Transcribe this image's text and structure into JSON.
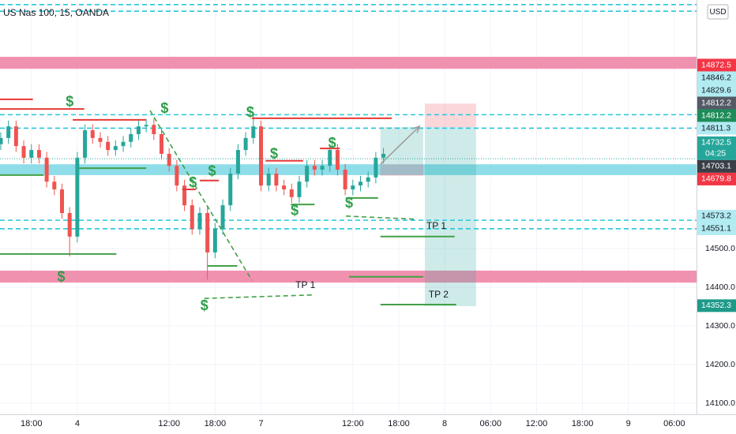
{
  "chart_data": {
    "type": "candlestick",
    "title": "US Nas 100, 15, OANDA",
    "currency": "USD",
    "countdown": "04:25",
    "up_color": "#26a69a",
    "down_color": "#ef5350",
    "grid": true,
    "xlim": [
      13.9,
      104.9
    ],
    "ylim": [
      14071.4,
      15142.9
    ],
    "xticks": [
      {
        "value": 18,
        "label": "18:00"
      },
      {
        "value": 24,
        "label": "4"
      },
      {
        "value": 36,
        "label": "12:00"
      },
      {
        "value": 42,
        "label": "18:00"
      },
      {
        "value": 48,
        "label": "7"
      },
      {
        "value": 60,
        "label": "12:00"
      },
      {
        "value": 66,
        "label": "18:00"
      },
      {
        "value": 72,
        "label": "8"
      },
      {
        "value": 78,
        "label": "06:00"
      },
      {
        "value": 84,
        "label": "12:00"
      },
      {
        "value": 90,
        "label": "18:00"
      },
      {
        "value": 96,
        "label": "9"
      },
      {
        "value": 102,
        "label": "06:00"
      }
    ],
    "yticks": [
      {
        "value": 14500,
        "label": "14500.0"
      },
      {
        "value": 14400,
        "label": "14400.0"
      },
      {
        "value": 14300,
        "label": "14300.0"
      },
      {
        "value": 14200,
        "label": "14200.0"
      },
      {
        "value": 14100,
        "label": "14100.0"
      }
    ],
    "candles": {
      "x": [
        14,
        15,
        16,
        17,
        18,
        19,
        20,
        21,
        22,
        23,
        24,
        25,
        26,
        27,
        28,
        29,
        30,
        31,
        32,
        33,
        34,
        35,
        36,
        37,
        38,
        39,
        40,
        41,
        42,
        43,
        44,
        45,
        46,
        47,
        48,
        49,
        50,
        51,
        52,
        53,
        54,
        55,
        56,
        57,
        58,
        59,
        60,
        61,
        62,
        63,
        64
      ],
      "open": [
        14770,
        14786,
        14816,
        14765,
        14735,
        14755,
        14735,
        14673,
        14653,
        14592,
        14531,
        14735,
        14806,
        14786,
        14776,
        14755,
        14765,
        14776,
        14796,
        14816,
        14820,
        14796,
        14745,
        14714,
        14663,
        14612,
        14551,
        14592,
        14490,
        14551,
        14612,
        14694,
        14755,
        14786,
        14816,
        14663,
        14694,
        14663,
        14653,
        14633,
        14673,
        14714,
        14704,
        14714,
        14755,
        14704,
        14653,
        14663,
        14673,
        14684,
        14735
      ],
      "high": [
        14801,
        14831,
        14831,
        14780,
        14770,
        14770,
        14750,
        14688,
        14668,
        14607,
        14750,
        14821,
        14821,
        14801,
        14791,
        14780,
        14791,
        14811,
        14831,
        14835,
        14835,
        14811,
        14760,
        14729,
        14678,
        14627,
        14607,
        14607,
        14566,
        14627,
        14709,
        14770,
        14801,
        14850,
        14831,
        14709,
        14709,
        14678,
        14668,
        14688,
        14729,
        14729,
        14729,
        14770,
        14770,
        14719,
        14678,
        14688,
        14699,
        14750,
        14760
      ],
      "low": [
        14755,
        14771,
        14750,
        14720,
        14720,
        14720,
        14658,
        14638,
        14577,
        14480,
        14516,
        14720,
        14771,
        14761,
        14740,
        14740,
        14750,
        14761,
        14781,
        14801,
        14781,
        14730,
        14699,
        14648,
        14597,
        14536,
        14536,
        14420,
        14475,
        14536,
        14597,
        14679,
        14740,
        14771,
        14648,
        14648,
        14648,
        14638,
        14618,
        14618,
        14658,
        14689,
        14689,
        14699,
        14689,
        14638,
        14638,
        14648,
        14658,
        14669,
        14720
      ],
      "close": [
        14786,
        14816,
        14765,
        14735,
        14755,
        14735,
        14673,
        14653,
        14592,
        14531,
        14735,
        14806,
        14786,
        14776,
        14755,
        14765,
        14776,
        14796,
        14816,
        14820,
        14796,
        14745,
        14714,
        14663,
        14612,
        14551,
        14592,
        14490,
        14551,
        14612,
        14694,
        14755,
        14786,
        14816,
        14663,
        14694,
        14663,
        14653,
        14633,
        14673,
        14714,
        14704,
        14714,
        14755,
        14704,
        14653,
        14663,
        14673,
        14684,
        14735,
        14745
      ]
    },
    "zones": [
      {
        "low": 14965,
        "high": 14996,
        "color": "#f191b0"
      },
      {
        "low": 14690,
        "high": 14718,
        "color": "#8fdde8"
      },
      {
        "low": 14412,
        "high": 14443,
        "color": "#f191b0"
      }
    ],
    "hlines": [
      {
        "price": 15131,
        "color": "#26c6da"
      },
      {
        "price": 15114,
        "color": "#26c6da"
      },
      {
        "price": 14846.2,
        "color": "#26c6da"
      },
      {
        "price": 14811.3,
        "color": "#26c6da"
      },
      {
        "price": 14573.2,
        "color": "#26c6da"
      },
      {
        "price": 14551.1,
        "color": "#26c6da"
      }
    ],
    "boxes": [
      {
        "from": 69.4,
        "to": 76.1,
        "low": 14814,
        "high": 14875,
        "color": "rgba(242,54,69,0.2)"
      },
      {
        "from": 69.4,
        "to": 76.1,
        "low": 14351,
        "high": 14814,
        "color": "rgba(38,166,154,0.22)"
      },
      {
        "from": 63.6,
        "to": 69.2,
        "low": 14718,
        "high": 14814,
        "color": "rgba(38,166,154,0.22)"
      },
      {
        "from": 63.6,
        "to": 69.2,
        "low": 14688,
        "high": 14718,
        "color": "rgba(242,54,69,0.2)"
      }
    ],
    "levels": [
      {
        "price": 14886,
        "from": 13.9,
        "to": 18.2,
        "color": "#e53935"
      },
      {
        "price": 14861,
        "from": 13.9,
        "to": 24.9,
        "color": "#e53935"
      },
      {
        "price": 14833,
        "from": 23.4,
        "to": 33,
        "color": "#e53935"
      },
      {
        "price": 14837,
        "from": 46.8,
        "to": 65.1,
        "color": "#e53935"
      },
      {
        "price": 14727,
        "from": 48.6,
        "to": 53.5,
        "color": "#e53935"
      },
      {
        "price": 14759,
        "from": 55.7,
        "to": 58.3,
        "color": "#e53935"
      },
      {
        "price": 14676,
        "from": 40,
        "to": 42.5,
        "color": "#e53935"
      },
      {
        "price": 14653,
        "from": 37.7,
        "to": 39.5,
        "color": "#e53935"
      },
      {
        "price": 14708,
        "from": 24.2,
        "to": 33,
        "color": "#43a047"
      },
      {
        "price": 14690,
        "from": 13.9,
        "to": 19.6,
        "color": "#43a047"
      },
      {
        "price": 14486,
        "from": 13.9,
        "to": 29.1,
        "color": "#43a047"
      },
      {
        "price": 14455,
        "from": 41,
        "to": 44.9,
        "color": "#43a047"
      },
      {
        "price": 14614,
        "from": 51.9,
        "to": 55,
        "color": "#43a047"
      },
      {
        "price": 14631,
        "from": 59.1,
        "to": 63.3,
        "color": "#43a047"
      },
      {
        "price": 14531,
        "from": 63.6,
        "to": 73.3,
        "color": "#43a047"
      },
      {
        "price": 14427,
        "from": 59.5,
        "to": 69.2,
        "color": "#43a047"
      },
      {
        "price": 14355,
        "from": 63.6,
        "to": 73.5,
        "color": "#43a047"
      }
    ],
    "trendlines": [
      {
        "x1": 33.5,
        "p1": 14857,
        "x2": 46.8,
        "p2": 14418,
        "color": "#43a047",
        "dashed": true
      },
      {
        "x1": 40.6,
        "p1": 14371,
        "x2": 54.7,
        "p2": 14380,
        "color": "#43a047",
        "dashed": true
      },
      {
        "x1": 59.1,
        "p1": 14584,
        "x2": 68.2,
        "p2": 14576,
        "color": "#43a047",
        "dashed": true
      },
      {
        "x1": 63.6,
        "p1": 14718,
        "x2": 68.7,
        "p2": 14816,
        "color": "#9e9e9e",
        "dashed": false
      }
    ],
    "markers": [
      {
        "label": "$",
        "x": 23,
        "price": 14878
      },
      {
        "label": "$",
        "x": 35.4,
        "price": 14861
      },
      {
        "label": "$",
        "x": 46.6,
        "price": 14851
      },
      {
        "label": "$",
        "x": 49.7,
        "price": 14743
      },
      {
        "label": "$",
        "x": 57.3,
        "price": 14771
      },
      {
        "label": "$",
        "x": 41.6,
        "price": 14698
      },
      {
        "label": "$",
        "x": 39.1,
        "price": 14669
      },
      {
        "label": "$",
        "x": 52.4,
        "price": 14596
      },
      {
        "label": "$",
        "x": 59.5,
        "price": 14616
      },
      {
        "label": "$",
        "x": 21.9,
        "price": 14425
      },
      {
        "label": "$",
        "x": 40.6,
        "price": 14351
      }
    ],
    "annotations": [
      {
        "label": "TP 1",
        "x": 70.9,
        "price": 14557
      },
      {
        "label": "TP 1",
        "x": 53.8,
        "price": 14404
      },
      {
        "label": "TP 2",
        "x": 71.2,
        "price": 14380
      }
    ],
    "price_labels": [
      {
        "value": 14872.5,
        "color": "#f23645",
        "text_color": "#ffffff"
      },
      {
        "value": 14846.2,
        "color": "#b2ebf2",
        "text_color": "#131722"
      },
      {
        "value": 14829.6,
        "color": "#b2ebf2",
        "text_color": "#131722"
      },
      {
        "value": 14812.2,
        "color": "#555b66",
        "text_color": "#ffffff"
      },
      {
        "value": 14812.2,
        "color": "#1e8c5a",
        "text_color": "#ffffff"
      },
      {
        "value": 14811.3,
        "color": "#b2ebf2",
        "text_color": "#131722"
      },
      {
        "value": 14732.5,
        "color": "#26a69a",
        "text_color": "#ffffff",
        "current": true
      },
      {
        "value": 14703.1,
        "color": "#3a3e47",
        "text_color": "#ffffff"
      },
      {
        "value": 14679.8,
        "color": "#f23645",
        "text_color": "#ffffff"
      },
      {
        "value": 14573.2,
        "color": "#b2ebf2",
        "text_color": "#131722"
      },
      {
        "value": 14551.1,
        "color": "#b2ebf2",
        "text_color": "#131722"
      },
      {
        "value": 14352.3,
        "color": "#1e9a8a",
        "text_color": "#ffffff"
      }
    ]
  }
}
